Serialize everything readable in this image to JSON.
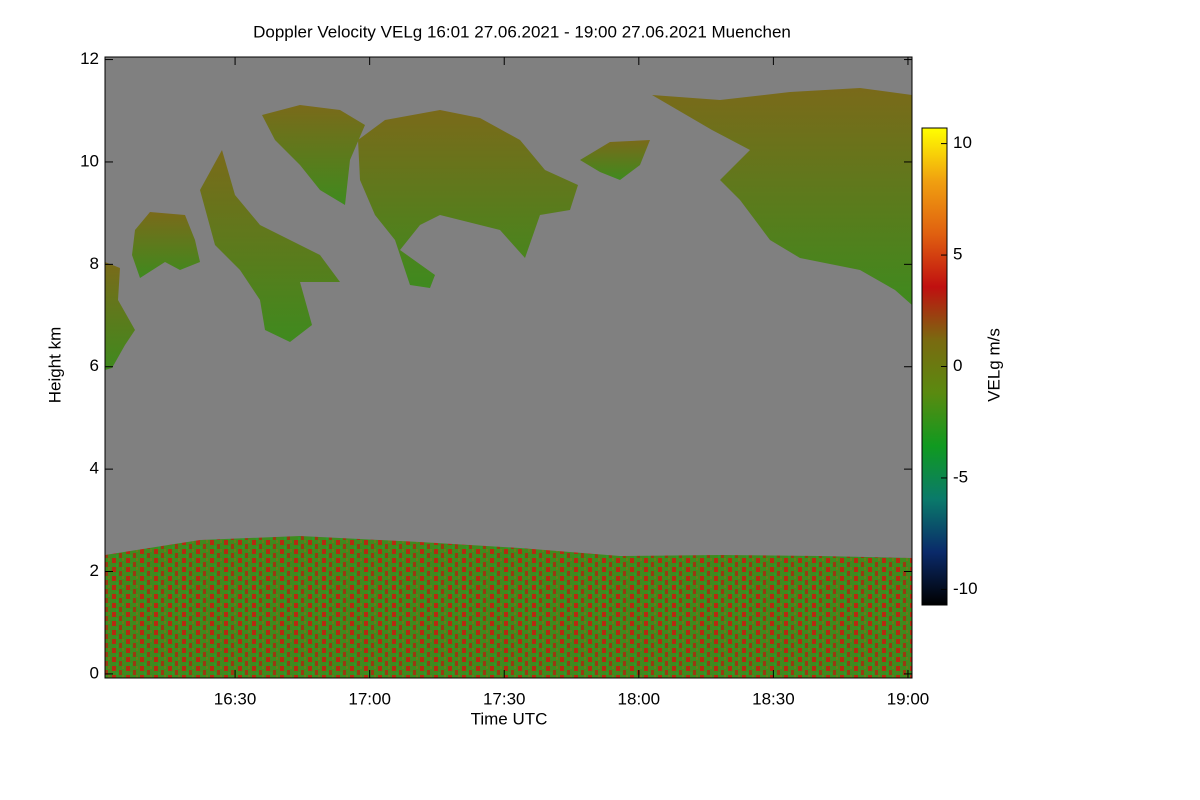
{
  "chart_data": {
    "type": "heatmap",
    "title": "Doppler Velocity VELg   16:01 27.06.2021 - 19:00 27.06.2021 Muenchen",
    "x_label": "Time UTC",
    "y_label": "Height km",
    "xlim": [
      16.0167,
      19.015
    ],
    "xticks": [
      {
        "value": 16.5,
        "label": "16:30"
      },
      {
        "value": 17,
        "label": "17:00"
      },
      {
        "value": 17.5,
        "label": "17:30"
      },
      {
        "value": 18,
        "label": "18:00"
      },
      {
        "value": 18.5,
        "label": "18:30"
      },
      {
        "value": 19,
        "label": "19:00"
      }
    ],
    "ylim": [
      -0.08,
      12.05
    ],
    "yticks": [
      0,
      2,
      4,
      6,
      8,
      10,
      12
    ],
    "background": "#808080",
    "colorbar": {
      "label": "VELg m/s",
      "lim": [
        -10.7,
        10.7
      ],
      "ticks": [
        -10,
        -5,
        0,
        5,
        10
      ],
      "colors": [
        "#000000",
        "#0a2a6a",
        "#0a7a6a",
        "#109a20",
        "#5a8a10",
        "#7a6a10",
        "#c01010",
        "#e06010",
        "#f0a010",
        "#ffff00"
      ]
    }
  }
}
